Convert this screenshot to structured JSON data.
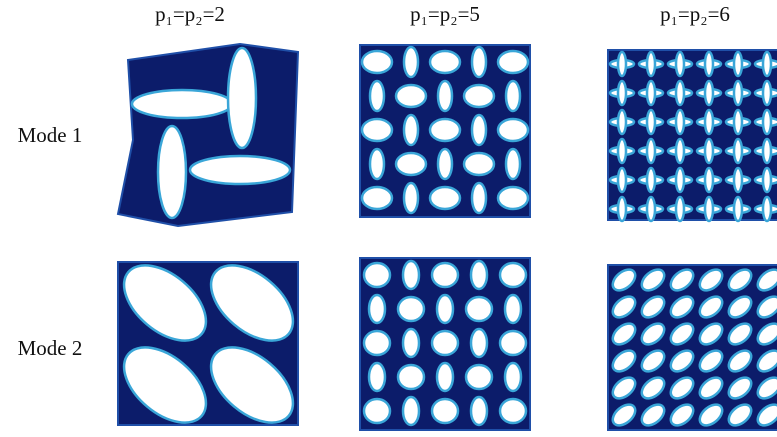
{
  "columns": [
    "p₁=p₂=2",
    "p₁=p₂=5",
    "p₁=p₂=6"
  ],
  "rows": [
    "Mode 1",
    "Mode 2"
  ]
}
